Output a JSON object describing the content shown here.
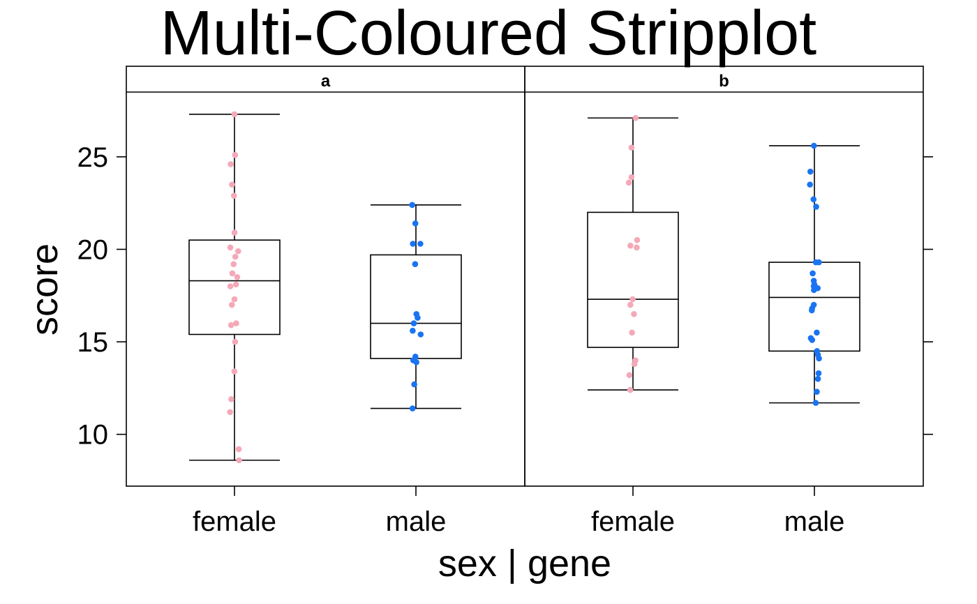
{
  "chart_data": {
    "type": "box",
    "title": "Multi-Coloured Stripplot",
    "xlabel": "sex | gene",
    "ylabel": "score",
    "categories": [
      "female",
      "male"
    ],
    "yticks": [
      10,
      15,
      20,
      25
    ],
    "ylim": [
      7.2,
      28.5
    ],
    "grid": false,
    "colors": {
      "female": "#f4a9b8",
      "male": "#1a74f2"
    },
    "panels": [
      {
        "strip_label": "a",
        "groups": [
          {
            "category": "female",
            "box": {
              "min": 8.6,
              "q1": 15.4,
              "median": 18.3,
              "q3": 20.5,
              "max": 27.3
            },
            "points": [
              27.3,
              25.1,
              24.6,
              23.5,
              22.9,
              20.9,
              20.1,
              19.9,
              19.6,
              19.2,
              18.7,
              18.5,
              18.1,
              18.0,
              17.3,
              17.0,
              16.0,
              15.9,
              15.0,
              13.4,
              11.9,
              11.2,
              9.2,
              8.6
            ]
          },
          {
            "category": "male",
            "box": {
              "min": 11.4,
              "q1": 14.1,
              "median": 16.0,
              "q3": 19.7,
              "max": 22.4
            },
            "points": [
              22.4,
              21.4,
              20.3,
              20.3,
              19.2,
              16.5,
              16.3,
              16.0,
              15.6,
              15.4,
              14.2,
              14.0,
              13.9,
              12.7,
              11.4
            ]
          }
        ]
      },
      {
        "strip_label": "b",
        "groups": [
          {
            "category": "female",
            "box": {
              "min": 12.4,
              "q1": 14.7,
              "median": 17.3,
              "q3": 22.0,
              "max": 27.1
            },
            "points": [
              27.1,
              25.5,
              23.9,
              23.6,
              20.5,
              20.2,
              20.1,
              17.3,
              17.0,
              16.5,
              15.5,
              14.0,
              13.8,
              13.2,
              12.4
            ]
          },
          {
            "category": "male",
            "box": {
              "min": 11.7,
              "q1": 14.5,
              "median": 17.4,
              "q3": 19.3,
              "max": 25.6
            },
            "points": [
              25.6,
              24.2,
              23.5,
              22.7,
              22.3,
              19.3,
              19.3,
              18.7,
              18.3,
              18.1,
              18.0,
              17.9,
              17.8,
              17.0,
              16.8,
              16.7,
              15.5,
              15.2,
              15.1,
              14.5,
              14.3,
              14.1,
              13.3,
              13.0,
              12.3,
              11.7
            ]
          }
        ]
      }
    ]
  }
}
